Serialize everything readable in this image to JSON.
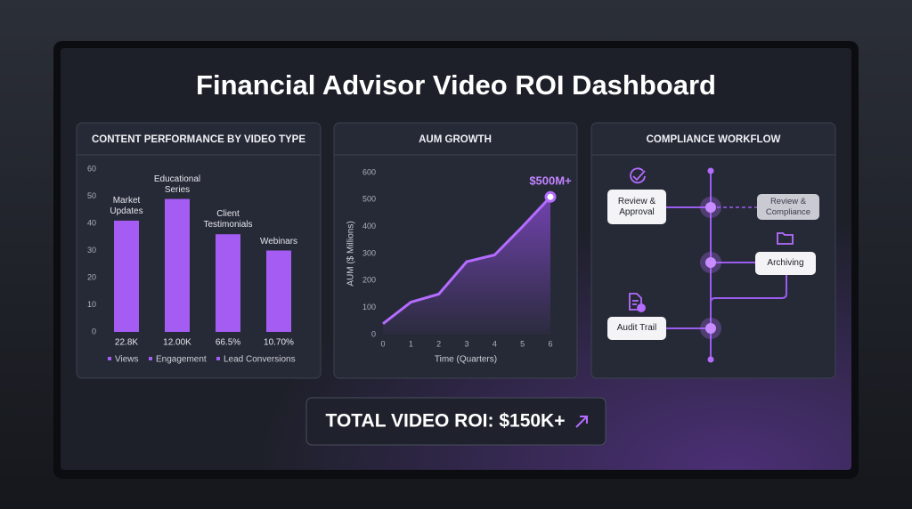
{
  "title": "Financial Advisor Video ROI Dashboard",
  "chart_data": [
    {
      "type": "bar",
      "title": "CONTENT PERFORMANCE BY VIDEO TYPE",
      "categories": [
        "Market Updates",
        "Educational Series",
        "Client Testimonials",
        "Webinars"
      ],
      "values": [
        41,
        49,
        36,
        30
      ],
      "color": "#a45cf2",
      "ylim": [
        0,
        60
      ],
      "yticks": [
        0,
        10,
        20,
        30,
        40,
        50,
        60
      ],
      "bar_notes": [
        "22.8K",
        "12.00K",
        "66.5%",
        "10.70%"
      ],
      "legend": [
        "Views",
        "Engagement",
        "Lead Conversions"
      ]
    },
    {
      "type": "line",
      "title": "AUM GROWTH",
      "x": [
        0,
        1,
        2,
        3,
        4,
        5,
        6
      ],
      "values": [
        40,
        120,
        150,
        270,
        295,
        400,
        510
      ],
      "color": "#b46cff",
      "xlim": [
        0,
        6
      ],
      "ylim": [
        0,
        600
      ],
      "xticks": [
        0,
        1,
        2,
        3,
        4,
        5,
        6
      ],
      "yticks": [
        0,
        100,
        200,
        300,
        400,
        500,
        600
      ],
      "xlabel": "Time (Quarters)",
      "ylabel": "AUM ($ Millions)",
      "annotation": "$500M+"
    }
  ],
  "workflow": {
    "title": "COMPLIANCE WORKFLOW",
    "nodes": [
      "Review & Approval",
      "Review & Compliance",
      "Archiving",
      "Audit Trail"
    ]
  },
  "roi": "TOTAL VIDEO ROI: $150K+"
}
